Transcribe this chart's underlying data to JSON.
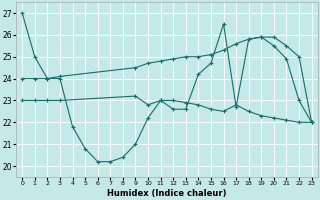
{
  "xlabel": "Humidex (Indice chaleur)",
  "xlim": [
    -0.5,
    23.5
  ],
  "ylim": [
    19.5,
    27.5
  ],
  "yticks": [
    20,
    21,
    22,
    23,
    24,
    25,
    26,
    27
  ],
  "xticks": [
    0,
    1,
    2,
    3,
    4,
    5,
    6,
    7,
    8,
    9,
    10,
    11,
    12,
    13,
    14,
    15,
    16,
    17,
    18,
    19,
    20,
    21,
    22,
    23
  ],
  "background_color": "#c5e8e8",
  "grid_color": "#ffffff",
  "line_color": "#1a6b6b",
  "line1_x": [
    0,
    1,
    2,
    3,
    4,
    5,
    6,
    7,
    8,
    9,
    10,
    11,
    12,
    13,
    14,
    15,
    16,
    17,
    18,
    19,
    20,
    21,
    22,
    23
  ],
  "line1_y": [
    27.0,
    25.0,
    24.0,
    24.0,
    21.8,
    20.8,
    20.2,
    20.2,
    20.4,
    21.0,
    22.2,
    23.0,
    22.6,
    22.6,
    24.2,
    24.7,
    26.5,
    22.7,
    25.8,
    25.9,
    25.5,
    24.9,
    23.0,
    22.0
  ],
  "line2_x": [
    0,
    1,
    2,
    3,
    9,
    10,
    11,
    12,
    13,
    14,
    15,
    16,
    17,
    18,
    19,
    20,
    21,
    22,
    23
  ],
  "line2_y": [
    23.0,
    23.0,
    23.0,
    23.0,
    23.2,
    22.8,
    23.0,
    23.0,
    22.9,
    22.8,
    22.6,
    22.5,
    22.8,
    22.5,
    22.3,
    22.2,
    22.1,
    22.0,
    22.0
  ],
  "line3_x": [
    0,
    1,
    2,
    3,
    9,
    10,
    11,
    12,
    13,
    14,
    15,
    16,
    17,
    18,
    19,
    20,
    21,
    22,
    23
  ],
  "line3_y": [
    24.0,
    24.0,
    24.0,
    24.1,
    24.5,
    24.7,
    24.8,
    24.9,
    25.0,
    25.0,
    25.1,
    25.3,
    25.6,
    25.8,
    25.9,
    25.9,
    25.5,
    25.0,
    22.0
  ]
}
